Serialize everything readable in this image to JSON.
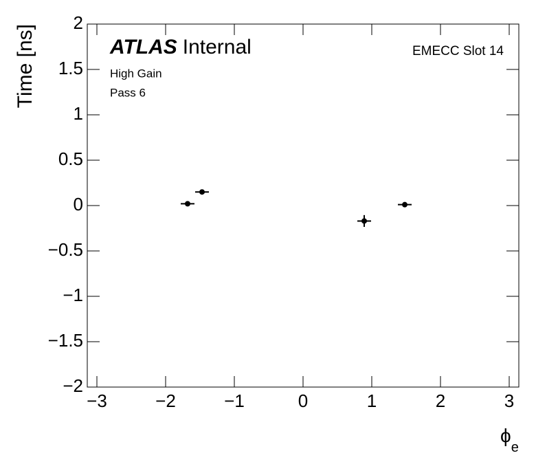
{
  "chart_data": {
    "type": "scatter",
    "label_main": "ATLAS",
    "label_sub": "Internal",
    "annotations": [
      "High Gain",
      "Pass 6"
    ],
    "corner_label": "EMECC Slot 14",
    "y_label": "Time [ns]",
    "x_label": "ϕ",
    "x_label_subscript": "e",
    "color": "#000000",
    "x": [
      -1.68,
      -1.47,
      0.89,
      1.48
    ],
    "values": [
      0.02,
      0.15,
      -0.17,
      0.01
    ],
    "xerr": [
      0.1,
      0.1,
      0.1,
      0.1
    ],
    "yerr": [
      0.02,
      0.02,
      0.065,
      0.02
    ],
    "xlim": [
      -3.14,
      3.14
    ],
    "ylim": [
      -2,
      2
    ],
    "xticks": [
      {
        "value": -3,
        "label": "−3"
      },
      {
        "value": -2,
        "label": "−2"
      },
      {
        "value": -1,
        "label": "−1"
      },
      0,
      1,
      2,
      3
    ],
    "yticks": [
      {
        "value": -2,
        "label": "−2"
      },
      {
        "value": -1.5,
        "label": "−1.5"
      },
      {
        "value": -1,
        "label": "−1"
      },
      {
        "value": -0.5,
        "label": "−0.5"
      },
      0,
      0.5,
      1,
      1.5,
      2
    ]
  }
}
